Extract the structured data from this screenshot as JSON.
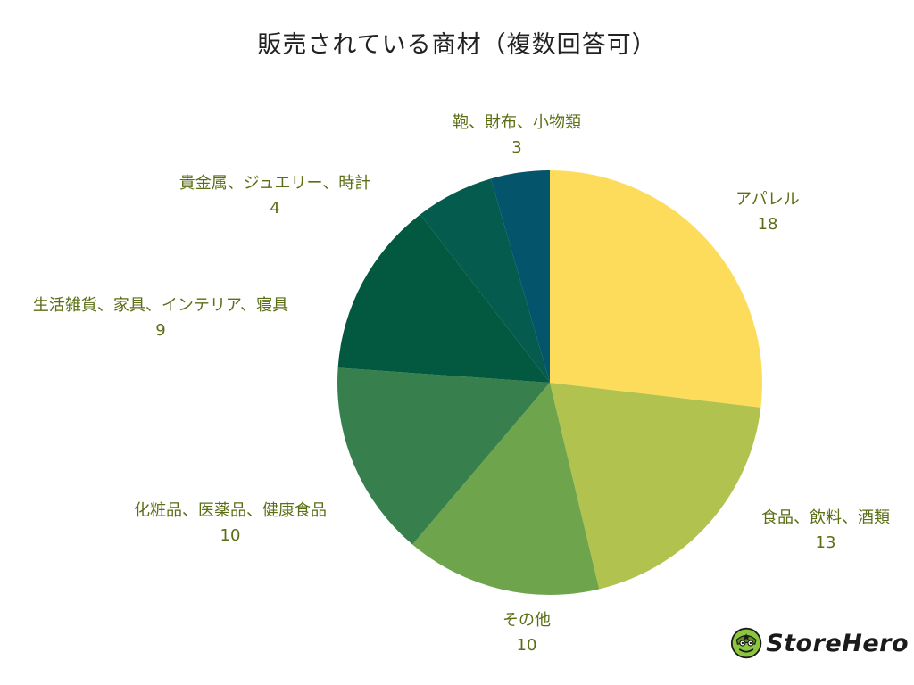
{
  "chart_data": {
    "type": "pie",
    "title": "販売されている商材（複数回答可）",
    "start": "12 o'clock",
    "direction": "clockwise",
    "slices": [
      {
        "label": "アパレル",
        "value": 18,
        "color": "#fddc5c"
      },
      {
        "label": "食品、飲料、酒類",
        "value": 13,
        "color": "#b1c24f"
      },
      {
        "label": "その他",
        "value": 10,
        "color": "#6ea54c"
      },
      {
        "label": "化粧品、医薬品、健康食品",
        "value": 10,
        "color": "#37804d"
      },
      {
        "label": "生活雑貨、家具、インテリア、寝具",
        "value": 9,
        "color": "#03593f"
      },
      {
        "label": "貴金属、ジュエリー、時計",
        "value": 4,
        "color": "#045b4e"
      },
      {
        "label": "鞄、財布、小物類",
        "value": 3,
        "color": "#04546b"
      }
    ]
  },
  "logo": {
    "text": "StoreHero",
    "icon": "storehero-mascot-icon"
  }
}
